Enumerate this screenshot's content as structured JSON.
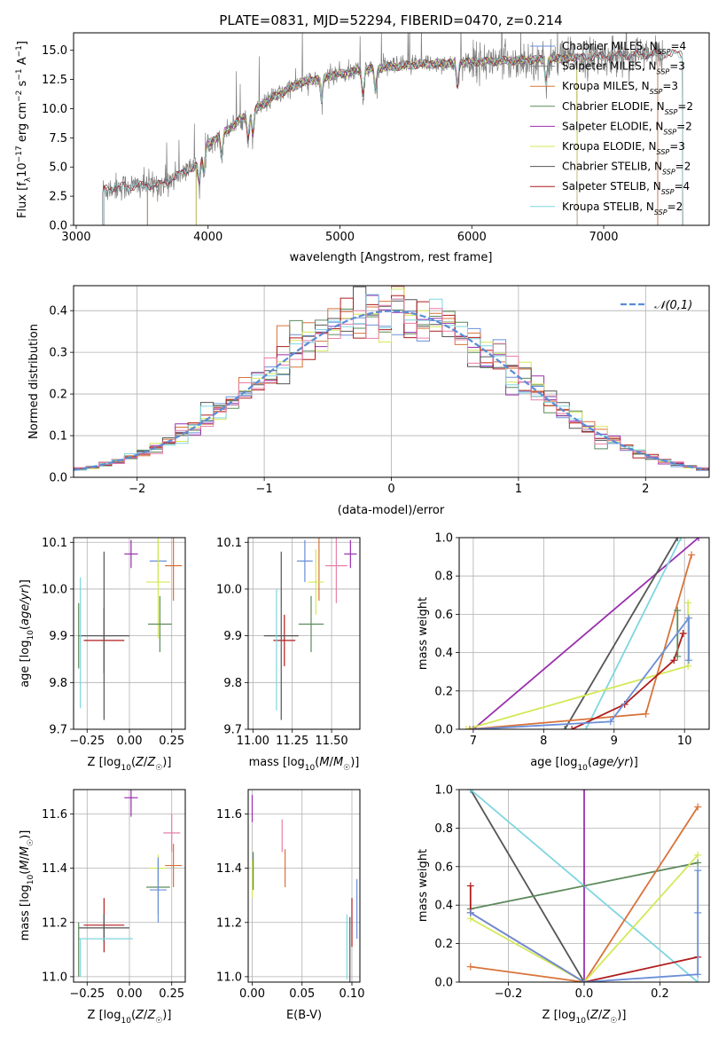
{
  "colors": {
    "Chabrier MILES": "#6a8fd8",
    "Salpeter MILES": "#8a8a8a",
    "Kroupa MILES": "#d8733a",
    "Chabrier ELODIE": "#5c8a5c",
    "Salpeter ELODIE": "#9b2fae",
    "Kroupa ELODIE": "#d4e857",
    "Chabrier STELIB": "#555555",
    "Salpeter STELIB": "#b01c1c",
    "Kroupa STELIB": "#7fd6e0",
    "normal": "#5b8bd6",
    "pink": "#e87fa8"
  },
  "chart_data": [
    {
      "id": "spectrum",
      "type": "line",
      "title": "PLATE=0831, MJD=52294, FIBERID=0470, z=0.214",
      "xlabel": "wavelength [Angstrom, rest frame]",
      "ylabel": "Flux [f_λ 10^-17 erg cm^-2 s^-1 A^-1]",
      "xlim": [
        2980,
        7800
      ],
      "ylim": [
        0,
        16.5
      ],
      "xticks": [
        3000,
        4000,
        5000,
        6000,
        7000
      ],
      "yticks": [
        0.0,
        2.5,
        5.0,
        7.5,
        10.0,
        12.5,
        15.0
      ],
      "legend_position": "top-right",
      "legend": [
        {
          "model": "Chabrier MILES",
          "nssp": "4"
        },
        {
          "model": "Salpeter MILES",
          "nssp": "3"
        },
        {
          "model": "Kroupa MILES",
          "nssp": "3"
        },
        {
          "model": "Chabrier ELODIE",
          "nssp": "2"
        },
        {
          "model": "Salpeter ELODIE",
          "nssp": "2"
        },
        {
          "model": "Kroupa ELODIE",
          "nssp": "3"
        },
        {
          "model": "Chabrier STELIB",
          "nssp": "2"
        },
        {
          "model": "Salpeter STELIB",
          "nssp": "4"
        },
        {
          "model": "Kroupa STELIB",
          "nssp": "2"
        }
      ],
      "data_color": "#808080",
      "data_x_range": [
        3200,
        7450
      ],
      "continuum_anchors": {
        "x": [
          3200,
          3300,
          3500,
          3650,
          3800,
          3900,
          4000,
          4100,
          4300,
          4500,
          4700,
          5000,
          5300,
          5600,
          6000,
          6500,
          7000,
          7450
        ],
        "y": [
          3.0,
          3.3,
          3.4,
          3.5,
          4.5,
          5.0,
          7.0,
          7.8,
          9.5,
          11.0,
          12.2,
          13.0,
          13.5,
          13.8,
          14.0,
          14.2,
          14.5,
          14.7
        ]
      },
      "model_cutoffs": [
        {
          "model": "Chabrier MILES",
          "min_x": 3540,
          "max_x": 7410
        },
        {
          "model": "Salpeter MILES",
          "min_x": 3540,
          "max_x": 7410
        },
        {
          "model": "Kroupa MILES",
          "min_x": 3540,
          "max_x": 7410
        },
        {
          "model": "Chabrier ELODIE",
          "min_x": 3910,
          "max_x": 6800
        },
        {
          "model": "Salpeter ELODIE",
          "min_x": 3910,
          "max_x": 6800
        },
        {
          "model": "Kroupa ELODIE",
          "min_x": 3910,
          "max_x": 6800
        },
        {
          "model": "Chabrier STELIB",
          "min_x": 3210,
          "max_x": 7600
        },
        {
          "model": "Salpeter STELIB",
          "min_x": 3210,
          "max_x": 7600
        },
        {
          "model": "Kroupa STELIB",
          "min_x": 3210,
          "max_x": 7600
        }
      ]
    },
    {
      "id": "residuals",
      "type": "line",
      "xlabel": "(data-model)/error",
      "ylabel": "Normed distribution",
      "xlim": [
        -2.5,
        2.5
      ],
      "ylim": [
        0,
        0.46
      ],
      "xticks": [
        -2,
        -1,
        0,
        1,
        2
      ],
      "yticks": [
        0.0,
        0.1,
        0.2,
        0.3,
        0.4
      ],
      "grid": true,
      "legend_position": "top-right",
      "legend": [
        "𝒩(0,1)"
      ],
      "bin_width": 0.1,
      "bin_start": -2.5,
      "series_order": [
        "Chabrier MILES",
        "Kroupa MILES",
        "Chabrier ELODIE",
        "Salpeter ELODIE",
        "Kroupa ELODIE",
        "Chabrier STELIB",
        "Salpeter STELIB",
        "Kroupa STELIB",
        "pink"
      ],
      "normal_curve": {
        "mean": 0,
        "sigma": 1
      }
    },
    {
      "id": "age-vs-Z",
      "type": "scatter",
      "xlabel": "Z [log10(Z/Z☉)]",
      "ylabel": "age [log10(age/yr)]",
      "xlim": [
        -0.33,
        0.33
      ],
      "ylim": [
        9.7,
        10.11
      ],
      "xticks": [
        -0.25,
        0.0,
        0.25
      ],
      "yticks": [
        9.7,
        9.8,
        9.9,
        10.0,
        10.1
      ],
      "grid": true,
      "points": [
        {
          "s": "Salpeter ELODIE",
          "x": 0.01,
          "y": 10.075,
          "xe": 0.04,
          "ye": 0.03
        },
        {
          "s": "Chabrier MILES",
          "x": 0.17,
          "y": 10.06,
          "xe": 0.05,
          "ye": 0.045
        },
        {
          "s": "Kroupa MILES",
          "x": 0.26,
          "y": 10.05,
          "xe": 0.05,
          "ye": 0.075
        },
        {
          "s": "Kroupa ELODIE",
          "x": 0.17,
          "y": 10.015,
          "xe": 0.07,
          "ye": 0.12
        },
        {
          "s": "Chabrier ELODIE",
          "x": 0.18,
          "y": 9.925,
          "xe": 0.07,
          "ye": 0.06
        },
        {
          "s": "Salpeter STELIB",
          "x": -0.15,
          "y": 9.89,
          "xe": 0.12,
          "ye": 0.07
        },
        {
          "s": "Chabrier STELIB",
          "x": -0.15,
          "y": 9.9,
          "xe": 0.15,
          "ye": 0.18
        },
        {
          "s": "Kroupa STELIB",
          "x": -0.29,
          "y": 9.885,
          "xe": 0.0,
          "ye": 0.14
        },
        {
          "s": "Chabrier ELODIE",
          "x": -0.3,
          "y": 9.9,
          "xe": 0.0,
          "ye": 0.07
        }
      ]
    },
    {
      "id": "age-vs-mass",
      "type": "scatter",
      "xlabel": "mass [log10(M/M☉)]",
      "xlim": [
        10.97,
        11.68
      ],
      "ylim": [
        9.7,
        10.11
      ],
      "xticks": [
        11.0,
        11.25,
        11.5
      ],
      "yticks": [
        9.7,
        9.8,
        9.9,
        10.0,
        10.1
      ],
      "grid": true,
      "points": [
        {
          "s": "Salpeter ELODIE",
          "x": 11.62,
          "y": 10.075,
          "xe": 0.04,
          "ye": 0.03
        },
        {
          "s": "Chabrier MILES",
          "x": 11.33,
          "y": 10.06,
          "xe": 0.05,
          "ye": 0.045
        },
        {
          "s": "pink",
          "x": 11.53,
          "y": 10.05,
          "xe": 0.07,
          "ye": 0.08
        },
        {
          "s": "Kroupa MILES",
          "x": 11.42,
          "y": 10.05,
          "xe": 0.0,
          "ye": 0.075
        },
        {
          "s": "Kroupa ELODIE",
          "x": 11.4,
          "y": 10.015,
          "xe": 0.05,
          "ye": 0.07
        },
        {
          "s": "Chabrier ELODIE",
          "x": 11.37,
          "y": 9.925,
          "xe": 0.08,
          "ye": 0.06
        },
        {
          "s": "Salpeter STELIB",
          "x": 11.2,
          "y": 9.89,
          "xe": 0.07,
          "ye": 0.055
        },
        {
          "s": "Chabrier STELIB",
          "x": 11.18,
          "y": 9.9,
          "xe": 0.11,
          "ye": 0.18
        },
        {
          "s": "Kroupa STELIB",
          "x": 11.15,
          "y": 9.87,
          "xe": 0.0,
          "ye": 0.13
        }
      ]
    },
    {
      "id": "weight-vs-age",
      "type": "line",
      "xlabel": "age [log10(age/yr)]",
      "ylabel": "mass weight",
      "xlim": [
        6.8,
        10.35
      ],
      "ylim": [
        0,
        1
      ],
      "xticks": [
        7,
        8,
        9,
        10
      ],
      "yticks": [
        0.0,
        0.2,
        0.4,
        0.6,
        0.8,
        1.0
      ],
      "grid": true,
      "series": [
        {
          "s": "Salpeter ELODIE",
          "x": [
            7.0,
            10.2
          ],
          "y": [
            0.0,
            1.0
          ]
        },
        {
          "s": "Kroupa STELIB",
          "x": [
            8.6,
            9.95
          ],
          "y": [
            0.0,
            1.0
          ]
        },
        {
          "s": "Chabrier STELIB",
          "x": [
            8.3,
            9.9
          ],
          "y": [
            0.0,
            1.0
          ]
        },
        {
          "s": "Kroupa ELODIE",
          "x": [
            6.9,
            10.05,
            10.05
          ],
          "y": [
            0.0,
            0.33,
            0.66
          ]
        },
        {
          "s": "Kroupa MILES",
          "x": [
            6.95,
            9.45,
            10.1
          ],
          "y": [
            0.0,
            0.08,
            0.91
          ]
        },
        {
          "s": "Salpeter STELIB",
          "x": [
            8.4,
            9.15,
            9.85,
            9.98,
            9.98
          ],
          "y": [
            0.0,
            0.13,
            0.36,
            0.5,
            0.5
          ]
        },
        {
          "s": "Chabrier ELODIE",
          "x": [
            9.9,
            9.9
          ],
          "y": [
            0.38,
            0.62
          ]
        },
        {
          "s": "Chabrier MILES",
          "x": [
            7.0,
            8.95,
            10.06,
            10.06
          ],
          "y": [
            0.0,
            0.04,
            0.58,
            0.36
          ]
        }
      ]
    },
    {
      "id": "mass-vs-Z",
      "type": "scatter",
      "xlabel": "Z [log10(Z/Z☉)]",
      "ylabel": "mass [log10(M/M☉)]",
      "xlim": [
        -0.33,
        0.33
      ],
      "ylim": [
        10.98,
        11.69
      ],
      "xticks": [
        -0.25,
        0.0,
        0.25
      ],
      "yticks": [
        11.0,
        11.2,
        11.4,
        11.6
      ],
      "grid": true,
      "points": [
        {
          "s": "Salpeter ELODIE",
          "x": 0.01,
          "y": 11.66,
          "xe": 0.04,
          "ye": 0.07
        },
        {
          "s": "pink",
          "x": 0.25,
          "y": 11.53,
          "xe": 0.05,
          "ye": 0.07
        },
        {
          "s": "Kroupa MILES",
          "x": 0.26,
          "y": 11.41,
          "xe": 0.05,
          "ye": 0.08
        },
        {
          "s": "Kroupa ELODIE",
          "x": 0.17,
          "y": 11.4,
          "xe": 0.05,
          "ye": 0.05
        },
        {
          "s": "Chabrier ELODIE",
          "x": 0.17,
          "y": 11.33,
          "xe": 0.07,
          "ye": 0.1
        },
        {
          "s": "Chabrier MILES",
          "x": 0.17,
          "y": 11.32,
          "xe": 0.05,
          "ye": 0.12
        },
        {
          "s": "Salpeter STELIB",
          "x": -0.15,
          "y": 11.19,
          "xe": 0.12,
          "ye": 0.1
        },
        {
          "s": "Chabrier STELIB",
          "x": -0.15,
          "y": 11.18,
          "xe": 0.15,
          "ye": 0.05
        },
        {
          "s": "Kroupa STELIB",
          "x": -0.14,
          "y": 11.14,
          "xe": 0.16,
          "ye": 0.0
        },
        {
          "s": "Chabrier ELODIE",
          "x": -0.3,
          "y": 11.1,
          "xe": 0.0,
          "ye": 0.1
        },
        {
          "s": "Kroupa STELIB",
          "x": -0.29,
          "y": 11.07,
          "xe": 0.0,
          "ye": 0.07
        }
      ]
    },
    {
      "id": "mass-vs-ebv",
      "type": "scatter",
      "xlabel": "E(B-V)",
      "xlim": [
        -0.004,
        0.108
      ],
      "ylim": [
        10.98,
        11.69
      ],
      "xticks": [
        0.0,
        0.05,
        0.1
      ],
      "yticks": [
        11.0,
        11.2,
        11.4,
        11.6
      ],
      "grid": true,
      "points": [
        {
          "s": "Salpeter ELODIE",
          "x": 0.0,
          "y": 11.62,
          "xe": 0.0,
          "ye": 0.05
        },
        {
          "s": "Kroupa ELODIE",
          "x": 0.0,
          "y": 11.36,
          "xe": 0.0,
          "ye": 0.07
        },
        {
          "s": "Chabrier ELODIE",
          "x": 0.001,
          "y": 11.39,
          "xe": 0.0,
          "ye": 0.07
        },
        {
          "s": "pink",
          "x": 0.03,
          "y": 11.52,
          "xe": 0.0,
          "ye": 0.06
        },
        {
          "s": "Kroupa MILES",
          "x": 0.033,
          "y": 11.4,
          "xe": 0.0,
          "ye": 0.07
        },
        {
          "s": "Salpeter STELIB",
          "x": 0.1,
          "y": 11.2,
          "xe": 0.0,
          "ye": 0.09
        },
        {
          "s": "Kroupa STELIB",
          "x": 0.095,
          "y": 11.11,
          "xe": 0.0,
          "ye": 0.12
        },
        {
          "s": "Chabrier STELIB",
          "x": 0.098,
          "y": 11.1,
          "xe": 0.0,
          "ye": 0.12
        },
        {
          "s": "Chabrier MILES",
          "x": 0.105,
          "y": 11.25,
          "xe": 0.0,
          "ye": 0.11
        }
      ]
    },
    {
      "id": "weight-vs-Z",
      "type": "line",
      "xlabel": "Z [log10(Z/Z☉)]",
      "ylabel": "mass weight",
      "xlim": [
        -0.33,
        0.33
      ],
      "ylim": [
        0,
        1
      ],
      "xticks": [
        -0.2,
        0.0,
        0.2
      ],
      "yticks": [
        0.0,
        0.2,
        0.4,
        0.6,
        0.8,
        1.0
      ],
      "grid": true,
      "series": [
        {
          "s": "Salpeter ELODIE",
          "x": [
            0.0,
            0.0
          ],
          "y": [
            0.0,
            1.0
          ]
        },
        {
          "s": "Chabrier STELIB",
          "x": [
            -0.3,
            0.0
          ],
          "y": [
            1.0,
            0.0
          ]
        },
        {
          "s": "Kroupa STELIB",
          "x": [
            -0.3,
            0.3
          ],
          "y": [
            1.0,
            0.0
          ]
        },
        {
          "s": "Chabrier ELODIE",
          "x": [
            -0.3,
            0.3
          ],
          "y": [
            0.38,
            0.62
          ]
        },
        {
          "s": "Kroupa MILES",
          "x": [
            -0.3,
            0.0,
            0.3
          ],
          "y": [
            0.08,
            0.0,
            0.91
          ]
        },
        {
          "s": "Kroupa ELODIE",
          "x": [
            -0.3,
            0.0,
            0.3
          ],
          "y": [
            0.33,
            0.0,
            0.66
          ]
        },
        {
          "s": "Salpeter STELIB",
          "x": [
            -0.3,
            -0.3,
            0.0,
            0.3
          ],
          "y": [
            0.5,
            0.36,
            0.0,
            0.13
          ]
        },
        {
          "s": "Chabrier MILES",
          "x": [
            -0.3,
            0.0,
            0.3,
            0.3,
            0.3
          ],
          "y": [
            0.36,
            0.0,
            0.04,
            0.58,
            0.36
          ]
        }
      ]
    }
  ]
}
